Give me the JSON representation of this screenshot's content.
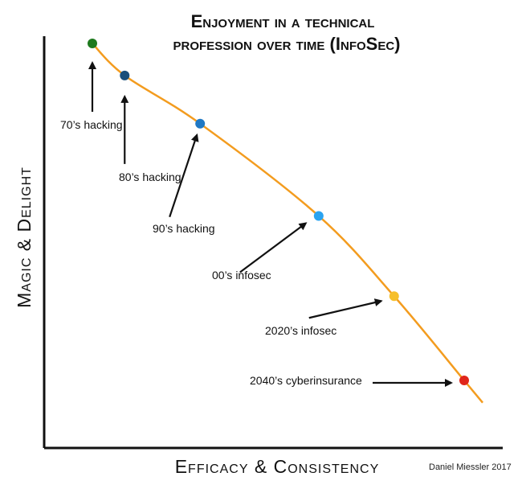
{
  "chart_data": {
    "type": "line",
    "title_lines": [
      "Enjoyment in a technical",
      "profession over time (InfoSec)"
    ],
    "xlabel": "Efficacy & Consistency",
    "ylabel": "Magic & Delight",
    "x_ticks": [],
    "y_ticks": [],
    "grid": false,
    "curve_color": "#f39c1f",
    "points": [
      {
        "label": "70’s hacking",
        "x": 1,
        "y": 100,
        "color": "#1e7a1e"
      },
      {
        "label": "80’s hacking",
        "x": 1.6,
        "y": 92,
        "color": "#1a4f7a"
      },
      {
        "label": "90’s hacking",
        "x": 3,
        "y": 80,
        "color": "#1f78c4"
      },
      {
        "label": "00’s infosec",
        "x": 5.2,
        "y": 57,
        "color": "#2aa3f0"
      },
      {
        "label": "2020’s infosec",
        "x": 6.6,
        "y": 37,
        "color": "#f6bf2a"
      },
      {
        "label": "2040’s cyberinsurance",
        "x": 7.9,
        "y": 16,
        "color": "#e0261b"
      }
    ]
  },
  "credit": "Daniel Miessler 2017"
}
